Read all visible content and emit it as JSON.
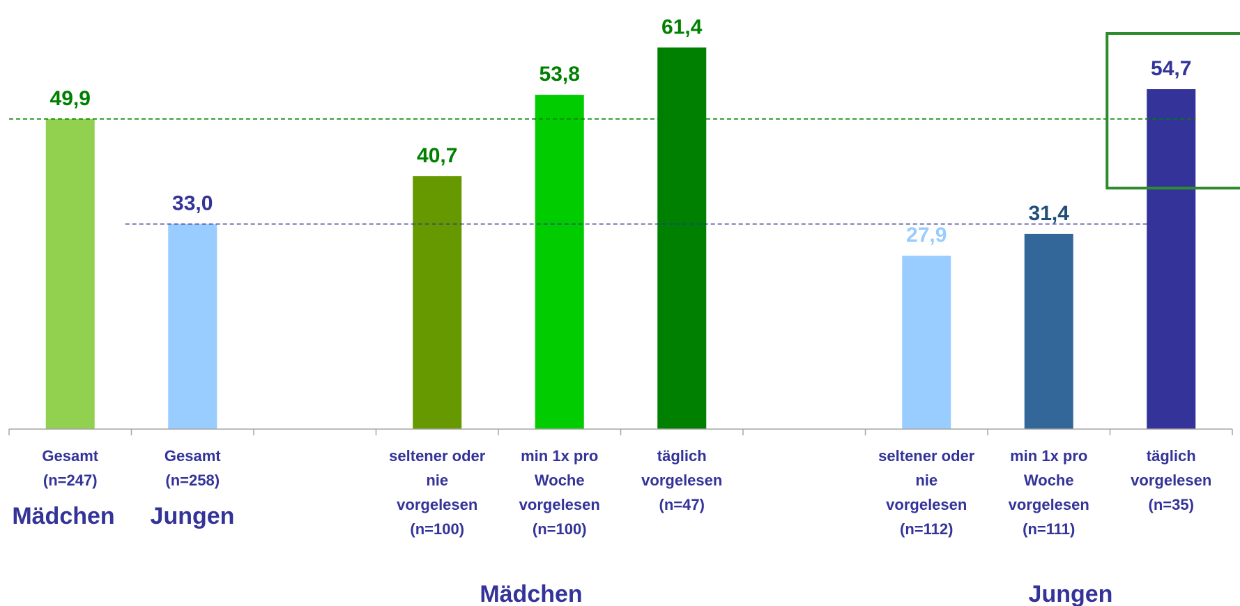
{
  "chart_data": {
    "type": "bar",
    "ylim": [
      0,
      63
    ],
    "grid": false,
    "categories": [
      [
        "Gesamt",
        "(n=247)"
      ],
      [
        "Gesamt",
        "(n=258)"
      ],
      [],
      [
        "seltener oder",
        "nie",
        "vorgelesen",
        "(n=100)"
      ],
      [
        "min 1x pro",
        "Woche",
        "vorgelesen",
        "(n=100)"
      ],
      [
        "täglich",
        "vorgelesen",
        "(n=47)"
      ],
      [],
      [
        "seltener oder",
        "nie",
        "vorgelesen",
        "(n=112)"
      ],
      [
        "min 1x pro",
        "Woche",
        "vorgelesen",
        "(n=111)"
      ],
      [
        "täglich",
        "vorgelesen",
        "(n=35)"
      ]
    ],
    "values": [
      49.9,
      33.0,
      null,
      40.7,
      53.8,
      61.4,
      null,
      27.9,
      31.4,
      54.7
    ],
    "value_labels": [
      "49,9",
      "33,0",
      "",
      "40,7",
      "53,8",
      "61,4",
      "",
      "27,9",
      "31,4",
      "54,7"
    ],
    "bar_colors": [
      "#92d050",
      "#99ccff",
      null,
      "#669900",
      "#00cc00",
      "#008000",
      null,
      "#99ccff",
      "#336699",
      "#333399"
    ],
    "label_colors": [
      "#008000",
      "#333399",
      null,
      "#008000",
      "#008000",
      "#008000",
      null,
      "#99ccff",
      "#1f4e79",
      "#333399"
    ],
    "reference_lines": [
      {
        "value": 49.9,
        "color": "#008000",
        "from_category": 0
      },
      {
        "value": 33.0,
        "color": "#333399",
        "from_category": 1
      }
    ],
    "highlight": {
      "category": 9,
      "color": "#2e8b2e"
    },
    "sublabels": [
      "Mädchen",
      "Jungen"
    ],
    "group_labels": [
      "Mädchen",
      "Jungen"
    ]
  }
}
